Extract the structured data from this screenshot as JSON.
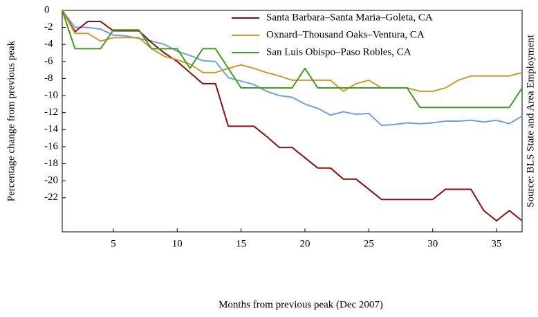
{
  "chart_data": {
    "type": "line",
    "x_label": "Months from previous peak (Dec 2007)",
    "y_label": "Percentage change from previous peak",
    "annotation": "Source: BLS State and Area Employment",
    "x": [
      1,
      2,
      3,
      4,
      5,
      6,
      7,
      8,
      9,
      10,
      11,
      12,
      13,
      14,
      15,
      16,
      17,
      18,
      19,
      20,
      21,
      22,
      23,
      24,
      25,
      26,
      27,
      28,
      29,
      30,
      31,
      32,
      33,
      34,
      35,
      36,
      37
    ],
    "series": [
      {
        "color": "#6f9fe0",
        "values": [
          0,
          -2,
          -2,
          -2.2,
          -2.9,
          -3,
          -3.3,
          -3.6,
          -4,
          -4.8,
          -5.3,
          -5.9,
          -6,
          -7.9,
          -8.3,
          -8.7,
          -9.5,
          -10,
          -10.2,
          -11,
          -11.5,
          -12.3,
          -11.9,
          -12.2,
          -12.1,
          -13.5,
          -13.4,
          -13.2,
          -13.3,
          -13.2,
          -13,
          -13,
          -12.9,
          -13.1,
          -12.9,
          -13.3,
          -12.4
        ]
      },
      {
        "name": "Santa Barbara–Santa Maria–Goleta, CA",
        "color": "#8b0a0a",
        "values": [
          0,
          -2.5,
          -1.3,
          -1.3,
          -2.4,
          -2.4,
          -2.4,
          -3.8,
          -5,
          -6,
          -7.3,
          -8.6,
          -8.6,
          -13.6,
          -13.6,
          -13.6,
          -14.8,
          -16.1,
          -16.1,
          -17.3,
          -18.5,
          -18.5,
          -19.8,
          -19.8,
          -21,
          -22.2,
          -22.2,
          -22.2,
          -22.2,
          -22.2,
          -21,
          -21,
          -21,
          -23.5,
          -24.7,
          -23.5,
          -24.7
        ]
      },
      {
        "name": "Oxnard–Thousand Oaks–Ventura, CA",
        "color": "#cc9a2a",
        "values": [
          0,
          -2.7,
          -2.7,
          -3.6,
          -3.2,
          -3.2,
          -3.2,
          -4.5,
          -5.4,
          -5.8,
          -6.3,
          -7.3,
          -7.3,
          -6.8,
          -6.4,
          -6.8,
          -7.3,
          -7.7,
          -8.2,
          -8.2,
          -8.2,
          -8.2,
          -9.5,
          -8.6,
          -8.2,
          -9.1,
          -9.1,
          -9.1,
          -9.5,
          -9.5,
          -9.1,
          -8.2,
          -7.7,
          -7.7,
          -7.7,
          -7.7,
          -7.3
        ]
      },
      {
        "name": "San Luis Obispo–Paso Robles, CA",
        "color": "#3f9a1f",
        "values": [
          0,
          -4.5,
          -4.5,
          -4.5,
          -2.3,
          -2.3,
          -2.3,
          -4.5,
          -4.5,
          -4.5,
          -6.8,
          -4.5,
          -4.5,
          -6.8,
          -9.1,
          -9.1,
          -9.1,
          -9.1,
          -9.1,
          -6.8,
          -9.1,
          -9.1,
          -9.1,
          -9.1,
          -9.1,
          -9.1,
          -9.1,
          -9.1,
          -11.4,
          -11.4,
          -11.4,
          -11.4,
          -11.4,
          -11.4,
          -11.4,
          -11.4,
          -9.1
        ]
      }
    ],
    "xlim": [
      1,
      37
    ],
    "xticks": [
      5,
      10,
      15,
      20,
      25,
      30,
      35
    ],
    "ylim": [
      -26,
      0
    ],
    "yticks": [
      0,
      -2,
      -4,
      -6,
      -8,
      -10,
      -12,
      -14,
      -16,
      -18,
      -20,
      -22
    ],
    "legend": "upper right"
  }
}
